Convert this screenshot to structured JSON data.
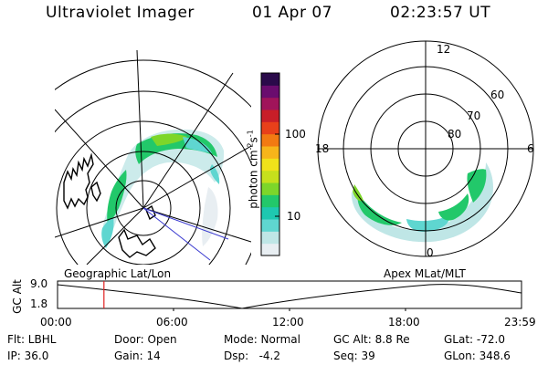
{
  "header": {
    "instrument": "Ultraviolet Imager",
    "date": "01 Apr 07",
    "time": "02:23:57 UT"
  },
  "colorbar": {
    "label": "photon cm",
    "exp1": "-2",
    "mid": "s",
    "exp2": "-1",
    "ticks": [
      "100",
      "10"
    ],
    "colors": [
      "#e8eef2",
      "#bfe6e6",
      "#5fd6d0",
      "#1ec8b0",
      "#22c86a",
      "#7dd62a",
      "#c6e01c",
      "#f0e21a",
      "#f7b51a",
      "#f27a12",
      "#e8401a",
      "#c81e28",
      "#a0145a",
      "#6a0c6e",
      "#2a0a4a"
    ]
  },
  "polar_plot": {
    "mlt_labels": [
      "12",
      "18",
      "6",
      "0"
    ],
    "mlat_labels": [
      "60",
      "70",
      "80"
    ]
  },
  "projection_labels": {
    "left": "Geographic Lat/Lon",
    "right": "Apex MLat/MLT"
  },
  "timeline": {
    "axis_label": "GC Alt",
    "y_max": "9.0",
    "y_min": "1.8",
    "x_ticks": [
      "00:00",
      "06:00",
      "12:00",
      "18:00",
      "23:59"
    ],
    "current_fraction": 0.1
  },
  "info": {
    "filter": "Flt: LBHL",
    "door": "Door: Open",
    "mode": "Mode: Normal",
    "gc_alt": "GC Alt: 8.8 Re",
    "glat": "GLat: -72.0",
    "ip": "IP: 36.0",
    "gain": "Gain: 14",
    "dsp": "Dsp:   -4.2",
    "seq": "Seq: 39",
    "glon": "GLon: 348.6"
  }
}
